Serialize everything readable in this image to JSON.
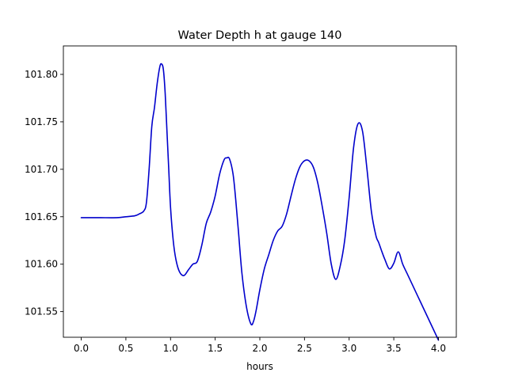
{
  "chart_data": {
    "type": "line",
    "title": "Water Depth h at gauge 140",
    "xlabel": "hours",
    "ylabel": "",
    "xlim": [
      -0.2,
      4.2
    ],
    "ylim": [
      101.523,
      101.83
    ],
    "grid": false,
    "x_ticks": [
      0.0,
      0.5,
      1.0,
      1.5,
      2.0,
      2.5,
      3.0,
      3.5,
      4.0
    ],
    "x_tick_labels": [
      "0.0",
      "0.5",
      "1.0",
      "1.5",
      "2.0",
      "2.5",
      "3.0",
      "3.5",
      "4.0"
    ],
    "y_ticks": [
      101.55,
      101.6,
      101.65,
      101.7,
      101.75,
      101.8
    ],
    "y_tick_labels": [
      "101.55",
      "101.60",
      "101.65",
      "101.70",
      "101.75",
      "101.80"
    ],
    "series": [
      {
        "color": "#0000cc",
        "x": [
          0.0,
          0.2,
          0.4,
          0.5,
          0.6,
          0.65,
          0.7,
          0.73,
          0.76,
          0.79,
          0.82,
          0.85,
          0.88,
          0.9,
          0.92,
          0.94,
          0.96,
          0.98,
          1.0,
          1.03,
          1.06,
          1.1,
          1.15,
          1.2,
          1.25,
          1.3,
          1.35,
          1.4,
          1.45,
          1.5,
          1.55,
          1.6,
          1.63,
          1.66,
          1.7,
          1.73,
          1.76,
          1.8,
          1.85,
          1.9,
          1.93,
          1.96,
          2.0,
          2.05,
          2.1,
          2.15,
          2.2,
          2.25,
          2.3,
          2.35,
          2.4,
          2.45,
          2.5,
          2.55,
          2.6,
          2.65,
          2.7,
          2.75,
          2.8,
          2.85,
          2.9,
          2.95,
          3.0,
          3.05,
          3.1,
          3.15,
          3.2,
          3.25,
          3.3,
          3.33,
          3.36,
          3.4,
          3.45,
          3.5,
          3.55,
          3.6,
          3.65,
          3.7,
          3.75,
          3.8,
          3.85,
          3.9,
          3.95,
          4.0
        ],
        "y": [
          101.649,
          101.649,
          101.649,
          101.65,
          101.651,
          101.653,
          101.656,
          101.665,
          101.7,
          101.745,
          101.765,
          101.79,
          101.808,
          101.811,
          101.805,
          101.78,
          101.74,
          101.7,
          101.66,
          101.625,
          101.605,
          101.592,
          101.588,
          101.594,
          101.6,
          101.603,
          101.62,
          101.643,
          101.655,
          101.672,
          101.695,
          101.71,
          101.712,
          101.711,
          101.695,
          101.668,
          101.635,
          101.59,
          101.555,
          101.537,
          101.54,
          101.552,
          101.573,
          101.595,
          101.61,
          101.625,
          101.635,
          101.64,
          101.653,
          101.672,
          101.69,
          101.703,
          101.709,
          101.709,
          101.702,
          101.685,
          101.66,
          101.632,
          101.6,
          101.584,
          101.598,
          101.625,
          101.67,
          101.723,
          101.748,
          101.74,
          101.7,
          101.655,
          101.63,
          101.623,
          101.615,
          101.605,
          101.595,
          101.601,
          101.613,
          101.6,
          101.59,
          101.58,
          101.57,
          101.56,
          101.55,
          101.54,
          101.53,
          101.52
        ]
      }
    ]
  }
}
